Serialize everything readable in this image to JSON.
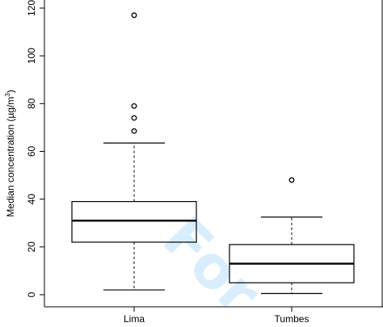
{
  "chart_data": {
    "type": "box",
    "title": "",
    "xlabel": "",
    "ylabel": "Median concentration (µg/m³)",
    "ylabel_parts": {
      "main": "Median concentration (µg/m",
      "sup": "3",
      "close": ")"
    },
    "categories": [
      "Lima",
      "Tumbes"
    ],
    "ylim": [
      0,
      120
    ],
    "yticks": [
      "0",
      "20",
      "40",
      "60",
      "80",
      "100",
      "120"
    ],
    "boxes": [
      {
        "category": "Lima",
        "whisker_low": 2,
        "q1": 22,
        "median": 31,
        "q3": 39,
        "whisker_high": 63.5,
        "outliers": [
          68.5,
          74,
          79,
          117
        ]
      },
      {
        "category": "Tumbes",
        "whisker_low": 0.5,
        "q1": 5,
        "median": 13,
        "q3": 21,
        "whisker_high": 32.5,
        "outliers": [
          48
        ]
      }
    ],
    "grid": false,
    "legend": "none"
  },
  "watermark": {
    "text": "For",
    "color": "#2ea3ff"
  }
}
